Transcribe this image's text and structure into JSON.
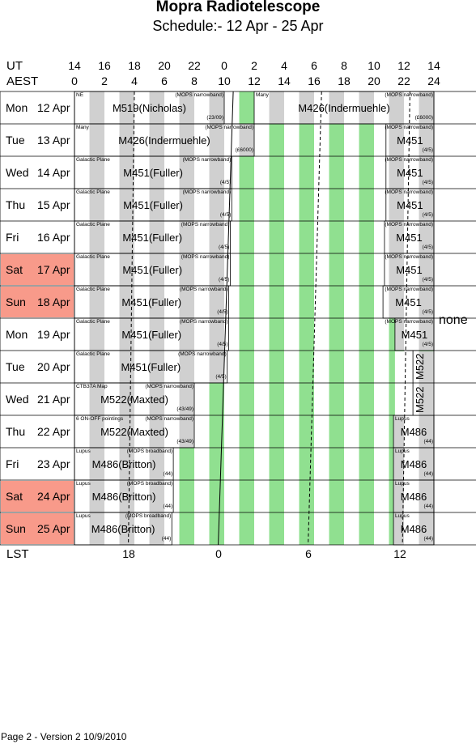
{
  "title": "Mopra Radiotelescope",
  "subtitle": "Schedule:- 12 Apr - 25 Apr",
  "axes": {
    "ut_label": "UT",
    "aest_label": "AEST",
    "lst_label": "LST",
    "ut_ticks": [
      "14",
      "16",
      "18",
      "20",
      "22",
      "0",
      "2",
      "4",
      "6",
      "8",
      "10",
      "12",
      "14"
    ],
    "aest_ticks": [
      "0",
      "2",
      "4",
      "6",
      "8",
      "10",
      "12",
      "14",
      "16",
      "18",
      "20",
      "22",
      "24"
    ],
    "lst_ticks": [
      "18",
      "0",
      "6",
      "12"
    ]
  },
  "days": [
    {
      "name": "Mon",
      "date": "12 Apr",
      "weekend": false
    },
    {
      "name": "Tue",
      "date": "13 Apr",
      "weekend": false
    },
    {
      "name": "Wed",
      "date": "14 Apr",
      "weekend": false
    },
    {
      "name": "Thu",
      "date": "15 Apr",
      "weekend": false
    },
    {
      "name": "Fri",
      "date": "16 Apr",
      "weekend": false
    },
    {
      "name": "Sat",
      "date": "17 Apr",
      "weekend": true
    },
    {
      "name": "Sun",
      "date": "18 Apr",
      "weekend": true
    },
    {
      "name": "Mon",
      "date": "19 Apr",
      "weekend": false
    },
    {
      "name": "Tue",
      "date": "20 Apr",
      "weekend": false
    },
    {
      "name": "Wed",
      "date": "21 Apr",
      "weekend": false
    },
    {
      "name": "Thu",
      "date": "22 Apr",
      "weekend": false
    },
    {
      "name": "Fri",
      "date": "23 Apr",
      "weekend": false
    },
    {
      "name": "Sat",
      "date": "24 Apr",
      "weekend": true
    },
    {
      "name": "Sun",
      "date": "25 Apr",
      "weekend": true
    }
  ],
  "blocks": [
    {
      "row": 0,
      "start": 0,
      "end": 10,
      "prog": "M519(Nicholas)",
      "desc": "NE",
      "mode": "(MOPS narrowband)",
      "note": "(23/09)"
    },
    {
      "row": 0,
      "start": 12,
      "end": 24,
      "prog": "M426(Indermuehle)",
      "desc": "Many",
      "mode": "(MOPS narrowband)",
      "note": "(£6000)"
    },
    {
      "row": 1,
      "start": 0,
      "end": 12,
      "prog": "M426(Indermuehle)",
      "desc": "Many",
      "mode": "(MOPS narrowband)",
      "note": "(£6000)"
    },
    {
      "row": 1,
      "start": 20.8,
      "end": 24,
      "prog": "M451",
      "desc": "",
      "mode": "(MOPS narrowband)",
      "note": "(4/5)"
    },
    {
      "row": 2,
      "start": 0,
      "end": 10.5,
      "prog": "M451(Fuller)",
      "desc": "Galactic Plane",
      "mode": "(MOPS narrowband)",
      "note": "(4/5)"
    },
    {
      "row": 2,
      "start": 20.8,
      "end": 24,
      "prog": "M451",
      "desc": "",
      "mode": "(MOPS narrowband)",
      "note": "(4/5)"
    },
    {
      "row": 3,
      "start": 0,
      "end": 10.5,
      "prog": "M451(Fuller)",
      "desc": "Galactic Plane",
      "mode": "(MOPS narrowband)",
      "note": "(4/5)"
    },
    {
      "row": 3,
      "start": 20.8,
      "end": 24,
      "prog": "M451",
      "desc": "",
      "mode": "(MOPS narrowband)",
      "note": "(4/5)"
    },
    {
      "row": 4,
      "start": 0,
      "end": 10.4,
      "prog": "M451(Fuller)",
      "desc": "Galactic Plane",
      "mode": "(MOPS narrowband)",
      "note": "(4/5)"
    },
    {
      "row": 4,
      "start": 20.7,
      "end": 24,
      "prog": "M451",
      "desc": "",
      "mode": "(MOPS narrowband)",
      "note": "(4/5)"
    },
    {
      "row": 5,
      "start": 0,
      "end": 10.4,
      "prog": "M451(Fuller)",
      "desc": "Galactic Plane",
      "mode": "(MOPS narrowband)",
      "note": "(4/5)"
    },
    {
      "row": 5,
      "start": 20.7,
      "end": 24,
      "prog": "M451",
      "desc": "",
      "mode": "(MOPS narrowband)",
      "note": "(4/5)"
    },
    {
      "row": 6,
      "start": 0,
      "end": 10.3,
      "prog": "M451(Fuller)",
      "desc": "Galactic Plane",
      "mode": "(MOPS narrowband)",
      "note": "(4/5)"
    },
    {
      "row": 6,
      "start": 20.6,
      "end": 24,
      "prog": "M451",
      "desc": "",
      "mode": "(MOPS narrowband)",
      "note": "(4/5)"
    },
    {
      "row": 7,
      "start": 0,
      "end": 10.3,
      "prog": "M451(Fuller)",
      "desc": "Galactic Plane",
      "mode": "(MOPS narrowband)",
      "note": "(4/5)"
    },
    {
      "row": 7,
      "start": 21.4,
      "end": 24,
      "prog": "M451",
      "desc": "",
      "mode": "(MOPS narrowband)",
      "note": "(4/5)"
    },
    {
      "row": 8,
      "start": 0,
      "end": 10.2,
      "prog": "M451(Fuller)",
      "desc": "Galactic Plane",
      "mode": "(MOPS narrowband)",
      "note": "(4/5)"
    },
    {
      "row": 9,
      "start": 0,
      "end": 8.0,
      "prog": "M522(Maxted)",
      "desc": "CTB37A Map",
      "mode": "(MOPS narrowband)",
      "note": "(43/49)"
    },
    {
      "row": 10,
      "start": 0,
      "end": 8.0,
      "prog": "M522(Maxted)",
      "desc": "6 ON-OFF pointings",
      "mode": "(MOPS narrowband)",
      "note": "(43/49)"
    },
    {
      "row": 10,
      "start": 21.3,
      "end": 24,
      "prog": "M486",
      "desc": "Lupus",
      "mode": "",
      "note": "(44)"
    },
    {
      "row": 11,
      "start": 0,
      "end": 6.6,
      "prog": "M486(Britton)",
      "desc": "Lupus",
      "mode": "(MOPS broadband)",
      "note": "(44)"
    },
    {
      "row": 11,
      "start": 21.3,
      "end": 24,
      "prog": "M486",
      "desc": "Lupus",
      "mode": "",
      "note": "(44)"
    },
    {
      "row": 12,
      "start": 0,
      "end": 6.6,
      "prog": "M486(Britton)",
      "desc": "Lupus",
      "mode": "(MOPS broadband)",
      "note": "(44)"
    },
    {
      "row": 12,
      "start": 21.3,
      "end": 24,
      "prog": "M486",
      "desc": "Lupus",
      "mode": "",
      "note": "(44)"
    },
    {
      "row": 13,
      "start": 0,
      "end": 6.5,
      "prog": "M486(Britton)",
      "desc": "Lupus",
      "mode": "(MOPS broadband)",
      "note": "(44)"
    },
    {
      "row": 13,
      "start": 21.3,
      "end": 24,
      "prog": "M486",
      "desc": "Lupus",
      "mode": "",
      "note": "(44)"
    }
  ],
  "vertical_blocks": [
    {
      "row_start": 8,
      "row_end": 10,
      "prog": "M522"
    }
  ],
  "side_note": "none",
  "footer": "Page 2 - Version 2  10/9/2010",
  "colors": {
    "weekend": "#f89a8a",
    "green": "#90e090",
    "gray": "#d0d0d0"
  }
}
